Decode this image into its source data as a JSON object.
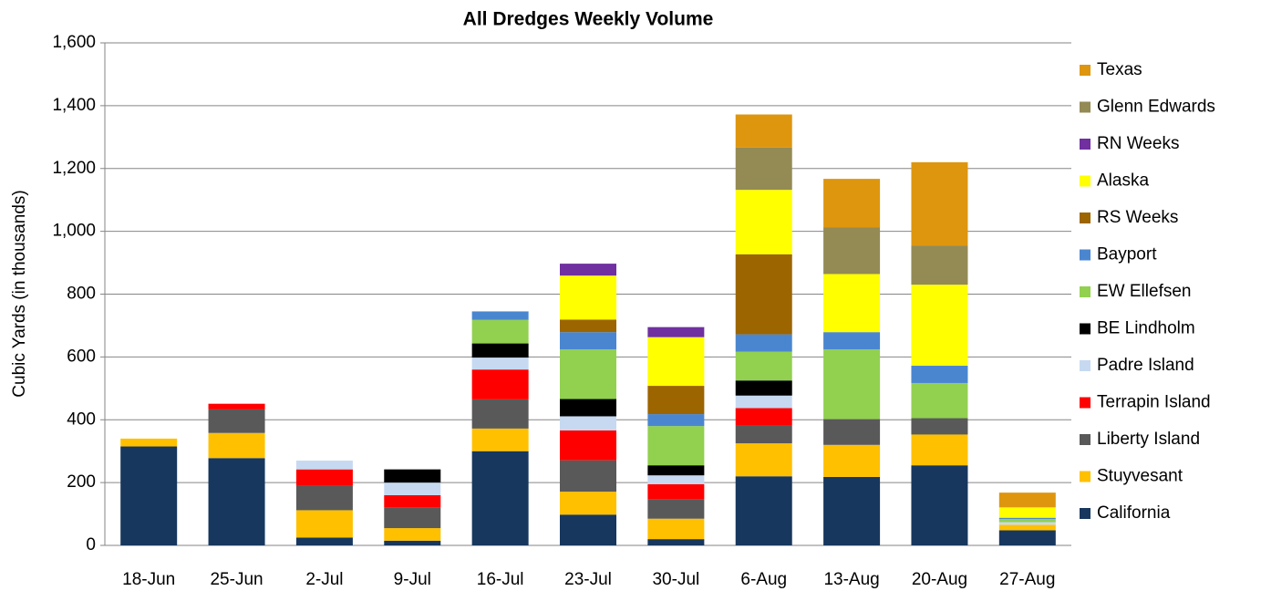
{
  "chart_data": {
    "type": "stacked_bar",
    "title": "All Dredges Weekly Volume",
    "y_label": "Cubic Yards (in thousands)",
    "categories": [
      "18-Jun",
      "25-Jun",
      "2-Jul",
      "9-Jul",
      "16-Jul",
      "23-Jul",
      "30-Jul",
      "6-Aug",
      "13-Aug",
      "20-Aug",
      "27-Aug"
    ],
    "ylim": [
      0,
      1600
    ],
    "yticks": [
      0,
      200,
      400,
      600,
      800,
      {
        "value": 1000,
        "label": "1,000"
      },
      {
        "value": 1200,
        "label": "1,200"
      },
      {
        "value": 1400,
        "label": "1,400"
      },
      {
        "value": 1600,
        "label": "1,600"
      }
    ],
    "grid": true,
    "legend": "right",
    "series": [
      {
        "name": "California",
        "color": "#17375e",
        "values": [
          315,
          278,
          25,
          15,
          300,
          98,
          20,
          220,
          218,
          255,
          48
        ]
      },
      {
        "name": "Stuyvesant",
        "color": "#ffc000",
        "values": [
          25,
          80,
          87,
          40,
          72,
          73,
          65,
          105,
          102,
          98,
          18
        ]
      },
      {
        "name": "Liberty Island",
        "color": "#595959",
        "values": [
          null,
          75,
          78,
          65,
          93,
          100,
          62,
          57,
          82,
          52,
          null
        ]
      },
      {
        "name": "Terrapin Island",
        "color": "#ff0000",
        "values": [
          null,
          18,
          52,
          40,
          95,
          95,
          48,
          55,
          null,
          null,
          null
        ]
      },
      {
        "name": "Padre Island",
        "color": "#c6d9f1",
        "values": [
          null,
          null,
          28,
          40,
          38,
          45,
          28,
          40,
          null,
          null,
          8
        ]
      },
      {
        "name": "BE Lindholm",
        "color": "#000000",
        "values": [
          null,
          null,
          null,
          42,
          45,
          55,
          32,
          48,
          null,
          null,
          null
        ]
      },
      {
        "name": "EW Ellefsen",
        "color": "#92d050",
        "values": [
          null,
          null,
          null,
          null,
          75,
          158,
          125,
          92,
          222,
          112,
          10
        ]
      },
      {
        "name": "Bayport",
        "color": "#4a86d0",
        "values": [
          null,
          null,
          null,
          null,
          27,
          55,
          38,
          55,
          55,
          55,
          4
        ]
      },
      {
        "name": "RS Weeks",
        "color": "#9c6500",
        "values": [
          null,
          null,
          null,
          null,
          null,
          40,
          90,
          255,
          null,
          null,
          null
        ]
      },
      {
        "name": "Alaska",
        "color": "#ffff00",
        "values": [
          null,
          null,
          null,
          null,
          null,
          140,
          155,
          205,
          185,
          258,
          33
        ]
      },
      {
        "name": "RN Weeks",
        "color": "#7030a0",
        "values": [
          null,
          null,
          null,
          null,
          null,
          38,
          32,
          null,
          null,
          null,
          null
        ]
      },
      {
        "name": "Glenn Edwards",
        "color": "#948a54",
        "values": [
          null,
          null,
          null,
          null,
          null,
          null,
          null,
          135,
          148,
          125,
          null
        ]
      },
      {
        "name": "Texas",
        "color": "#de960e",
        "values": [
          null,
          null,
          null,
          null,
          null,
          null,
          null,
          105,
          155,
          265,
          47
        ]
      }
    ]
  }
}
